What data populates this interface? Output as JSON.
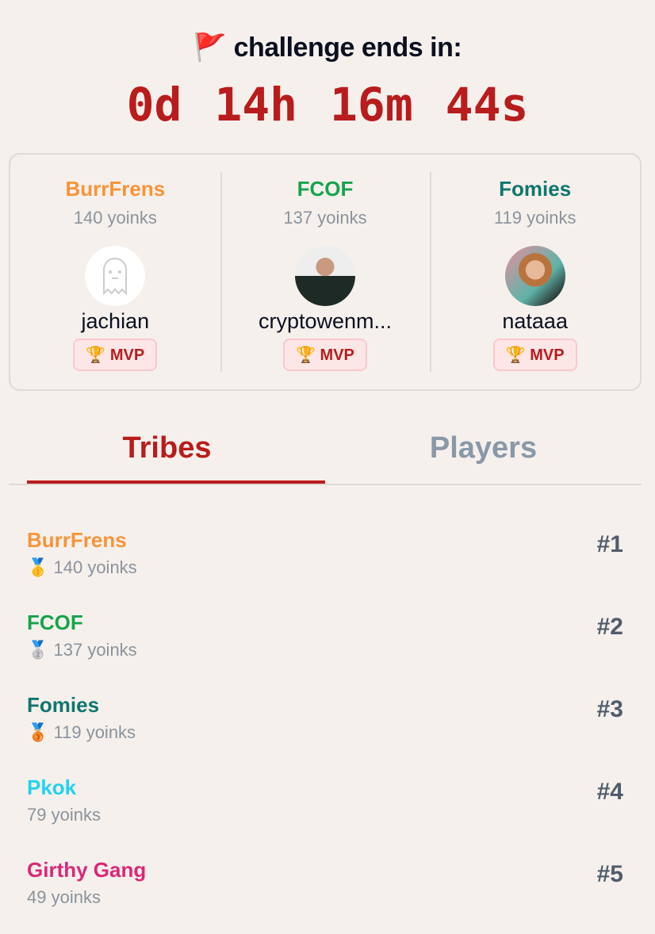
{
  "header": {
    "icon": "red-flag-icon",
    "flag": "🚩",
    "title": "challenge ends in:"
  },
  "timer": "0d 14h 16m 44s",
  "mvps": [
    {
      "tribe": "BurrFrens",
      "color": "#f79438",
      "points": "140 yoinks",
      "player": "jachian",
      "avatar": "ghost-avatar",
      "badge": "🏆 MVP"
    },
    {
      "tribe": "FCOF",
      "color": "#16a34a",
      "points": "137 yoinks",
      "player": "cryptowenm...",
      "avatar": "photo-avatar",
      "badge": "🏆 MVP"
    },
    {
      "tribe": "Fomies",
      "color": "#0f766e",
      "points": "119 yoinks",
      "player": "nataaa",
      "avatar": "photo-avatar",
      "badge": "🏆 MVP"
    }
  ],
  "tabs": [
    {
      "label": "Tribes",
      "active": true
    },
    {
      "label": "Players",
      "active": false
    }
  ],
  "tribes": [
    {
      "name": "BurrFrens",
      "color": "#f79438",
      "points": "🥇 140 yoinks",
      "rank": "#1"
    },
    {
      "name": "FCOF",
      "color": "#16a34a",
      "points": "🥈 137 yoinks",
      "rank": "#2"
    },
    {
      "name": "Fomies",
      "color": "#0f766e",
      "points": "🥉 119 yoinks",
      "rank": "#3"
    },
    {
      "name": "Pkok",
      "color": "#22d3ee",
      "points": "79 yoinks",
      "rank": "#4"
    },
    {
      "name": "Girthy Gang",
      "color": "#db2777",
      "points": "49 yoinks",
      "rank": "#5"
    }
  ]
}
